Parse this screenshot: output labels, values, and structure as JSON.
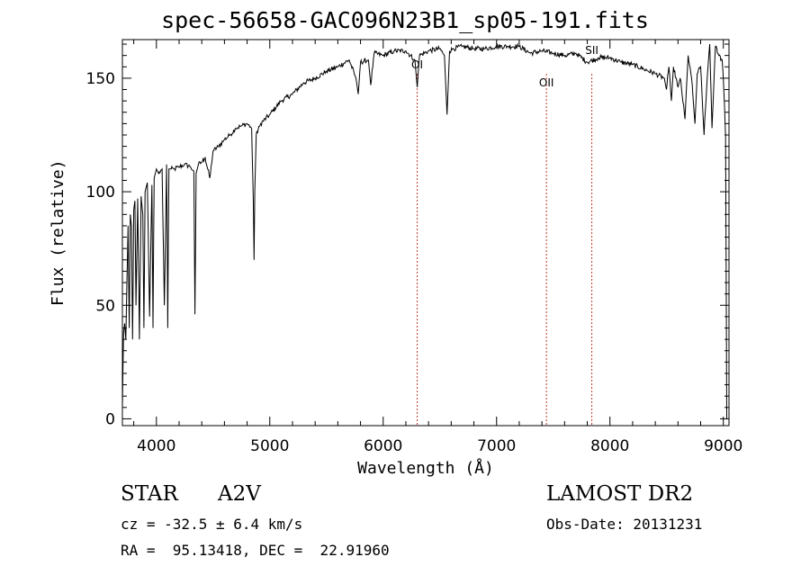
{
  "chart_data": {
    "type": "line",
    "title": "spec-56658-GAC096N23B1_sp05-191.fits",
    "xlabel": "Wavelength (Å)",
    "ylabel": "Flux (relative)",
    "xlim": [
      3700,
      9050
    ],
    "ylim": [
      -3,
      167
    ],
    "xticks": [
      4000,
      5000,
      6000,
      7000,
      8000,
      9000
    ],
    "yticks": [
      0,
      50,
      100,
      150
    ],
    "grid": false,
    "line_color": "#000000",
    "marker_color": "#c0392b",
    "lines": [
      {
        "name": "OI",
        "wavelength": 6300
      },
      {
        "name": "OII",
        "wavelength": 7440
      },
      {
        "name": "SII",
        "wavelength": 7840
      }
    ],
    "series": [
      {
        "x": [
          3700,
          3710,
          3720,
          3730,
          3740,
          3750,
          3760,
          3770,
          3780,
          3790,
          3800,
          3810,
          3820,
          3835,
          3850,
          3865,
          3880,
          3890,
          3900,
          3920,
          3940,
          3960,
          3970,
          3980,
          4000,
          4020,
          4050,
          4070,
          4090,
          4100,
          4110,
          4130,
          4160,
          4200,
          4250,
          4300,
          4330,
          4340,
          4350,
          4370,
          4400,
          4430,
          4471,
          4500,
          4550,
          4600,
          4650,
          4700,
          4750,
          4800,
          4840,
          4855,
          4861,
          4868,
          4880,
          4920,
          5000,
          5100,
          5200,
          5300,
          5400,
          5500,
          5600,
          5700,
          5760,
          5780,
          5800,
          5870,
          5890,
          5920,
          6000,
          6100,
          6200,
          6280,
          6300,
          6320,
          6400,
          6500,
          6540,
          6563,
          6585,
          6620,
          6700,
          6800,
          6900,
          7000,
          7100,
          7200,
          7300,
          7400,
          7500,
          7600,
          7700,
          7800,
          7900,
          8000,
          8100,
          8200,
          8300,
          8400,
          8480,
          8498,
          8520,
          8542,
          8560,
          8600,
          8620,
          8662,
          8690,
          8720,
          8750,
          8770,
          8800,
          8830,
          8860,
          8880,
          8900,
          8930,
          8960,
          8990,
          9000,
          9010,
          9020,
          9030
        ],
        "y": [
          5,
          38,
          42,
          35,
          60,
          85,
          40,
          90,
          85,
          35,
          92,
          96,
          50,
          97,
          35,
          98,
          90,
          40,
          100,
          104,
          45,
          103,
          40,
          106,
          110,
          108,
          110,
          50,
          112,
          40,
          110,
          110,
          110,
          111,
          112,
          111,
          109,
          46,
          108,
          112,
          113,
          115,
          106,
          118,
          120,
          123,
          125,
          128,
          129,
          130,
          128,
          95,
          70,
          100,
          125,
          130,
          134,
          140,
          143,
          148,
          150,
          153,
          155,
          158,
          150,
          143,
          157,
          158,
          147,
          161,
          160,
          162,
          162,
          158,
          146,
          160,
          162,
          163,
          160,
          134,
          162,
          163,
          164,
          163,
          163,
          164,
          164,
          164,
          161,
          162,
          161,
          160,
          161,
          157,
          159,
          159,
          157,
          156,
          154,
          152,
          150,
          145,
          155,
          140,
          155,
          146,
          150,
          132,
          160,
          150,
          130,
          152,
          155,
          125,
          152,
          165,
          128,
          164,
          160,
          158,
          150,
          138,
          124,
          0
        ]
      }
    ]
  },
  "info": {
    "object": "STAR",
    "subclass": "A2V",
    "survey": "LAMOST DR2",
    "cz": "cz = -32.5 ± 6.4 km/s",
    "obsdate": "Obs-Date: 20131231",
    "radec": "RA =  95.13418, DEC =  22.91960"
  }
}
